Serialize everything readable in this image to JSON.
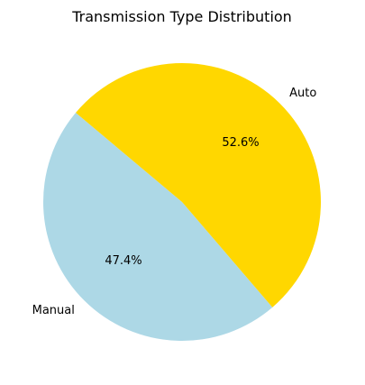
{
  "chart_data": {
    "type": "pie",
    "title": "Transmission Type Distribution",
    "slices": [
      {
        "label": "Manual",
        "value": 47.4,
        "pct_label": "47.4%",
        "color": "#add8e6"
      },
      {
        "label": "Auto",
        "value": 52.6,
        "pct_label": "52.6%",
        "color": "#ffd700"
      }
    ],
    "start_angle_deg": 140,
    "direction": "counterclockwise"
  }
}
